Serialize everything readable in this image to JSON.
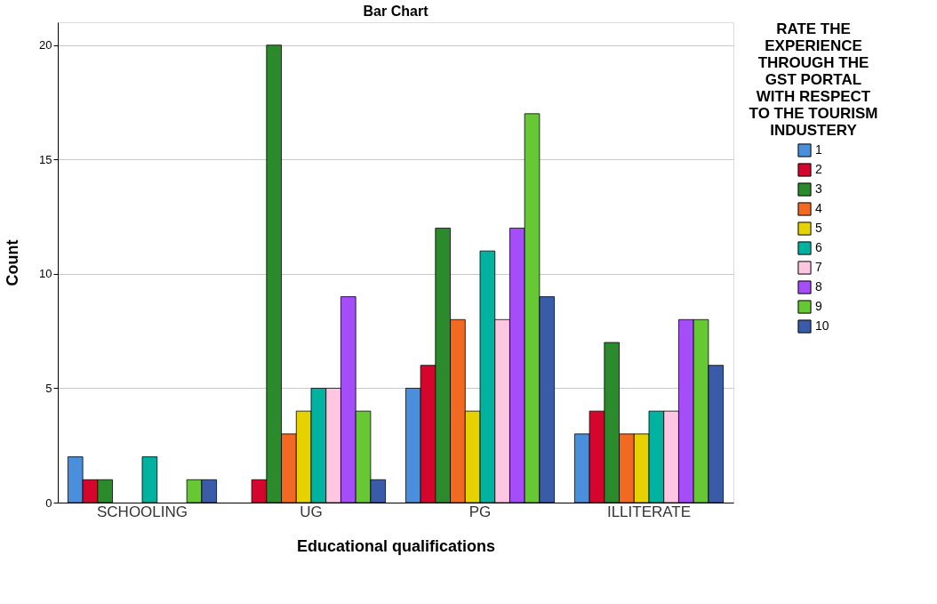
{
  "chart_data": {
    "type": "bar",
    "title": "Bar Chart",
    "xlabel": "Educational qualifications",
    "ylabel": "Count",
    "legend_title": "RATE THE EXPERIENCE THROUGH THE GST PORTAL WITH RESPECT TO THE TOURISM INDUSTERY",
    "categories": [
      "SCHOOLING",
      "UG",
      "PG",
      "ILLITERATE"
    ],
    "series": [
      {
        "name": "1",
        "color": "#4a8fdc",
        "values": [
          2,
          null,
          5,
          3
        ]
      },
      {
        "name": "2",
        "color": "#d4062d",
        "values": [
          1,
          1,
          6,
          4
        ]
      },
      {
        "name": "3",
        "color": "#2b8a2b",
        "values": [
          1,
          20,
          12,
          7
        ]
      },
      {
        "name": "4",
        "color": "#f26a21",
        "values": [
          null,
          3,
          8,
          3
        ]
      },
      {
        "name": "5",
        "color": "#e6d200",
        "values": [
          null,
          4,
          4,
          3
        ]
      },
      {
        "name": "6",
        "color": "#00b3a1",
        "values": [
          2,
          5,
          11,
          4
        ]
      },
      {
        "name": "7",
        "color": "#ffc6e2",
        "values": [
          null,
          5,
          8,
          4
        ]
      },
      {
        "name": "8",
        "color": "#a64dfa",
        "values": [
          null,
          9,
          12,
          8
        ]
      },
      {
        "name": "9",
        "color": "#66c833",
        "values": [
          1,
          4,
          17,
          8
        ]
      },
      {
        "name": "10",
        "color": "#3a5ca8",
        "values": [
          1,
          1,
          9,
          6
        ]
      }
    ],
    "ylim": [
      0,
      21
    ],
    "yticks": [
      0,
      5,
      10,
      15,
      20
    ],
    "grid": "y",
    "legend": "right"
  }
}
